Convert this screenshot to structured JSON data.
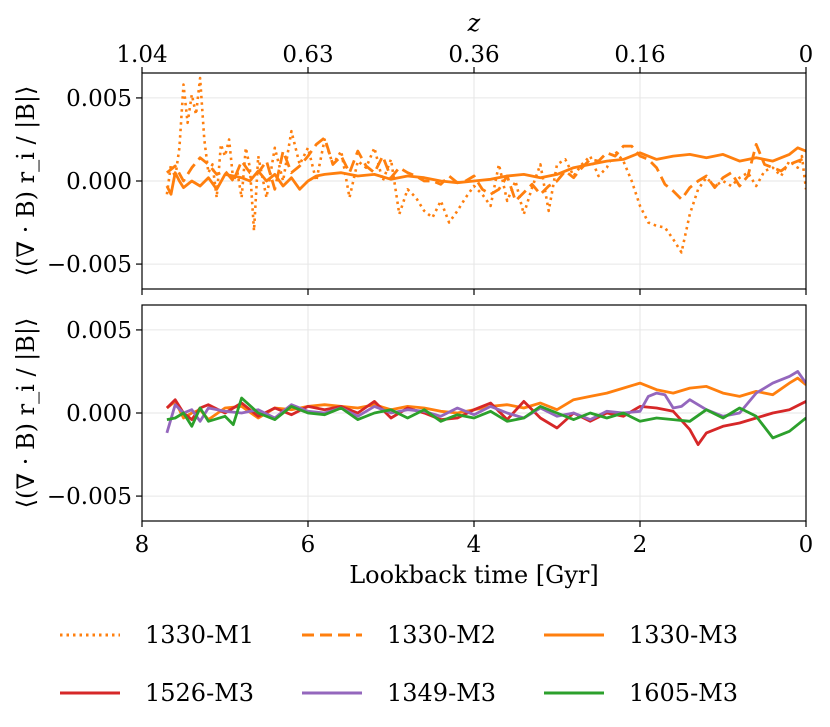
{
  "chart_data": [
    {
      "type": "line",
      "panel": "top",
      "ylabel": "⟨(∇ · B) r_i / |B|⟩",
      "xlim": [
        8,
        0
      ],
      "ylim": [
        -0.0065,
        0.0065
      ],
      "yticks": [
        -0.005,
        0.0,
        0.005
      ],
      "ytick_labels": [
        "−0.005",
        "0.000",
        "0.005"
      ],
      "xticks": [
        8,
        6,
        4,
        2,
        0
      ],
      "xtick_labels": [
        "",
        "",
        "",
        "",
        ""
      ],
      "grid": true,
      "top_axis": {
        "label": "z",
        "ticks": [
          8,
          6,
          4,
          2,
          0
        ],
        "tick_labels": [
          "1.04",
          "0.63",
          "0.36",
          "0.16",
          "0"
        ]
      },
      "series": [
        {
          "name": "1330-M1",
          "color": "#ff7f0e",
          "style": "dotted",
          "x": [
            7.7,
            7.65,
            7.6,
            7.55,
            7.5,
            7.45,
            7.4,
            7.35,
            7.3,
            7.25,
            7.2,
            7.15,
            7.1,
            7.05,
            7.0,
            6.95,
            6.9,
            6.85,
            6.8,
            6.75,
            6.7,
            6.65,
            6.6,
            6.5,
            6.4,
            6.3,
            6.2,
            6.1,
            6.0,
            5.9,
            5.8,
            5.7,
            5.6,
            5.5,
            5.4,
            5.3,
            5.2,
            5.1,
            5.0,
            4.9,
            4.8,
            4.7,
            4.6,
            4.5,
            4.4,
            4.3,
            4.2,
            4.1,
            4.0,
            3.9,
            3.8,
            3.7,
            3.6,
            3.5,
            3.4,
            3.3,
            3.2,
            3.1,
            3.0,
            2.9,
            2.8,
            2.7,
            2.6,
            2.5,
            2.4,
            2.3,
            2.2,
            2.1,
            2.0,
            1.9,
            1.8,
            1.7,
            1.6,
            1.5,
            1.4,
            1.3,
            1.2,
            1.1,
            1.0,
            0.9,
            0.8,
            0.7,
            0.6,
            0.5,
            0.4,
            0.3,
            0.2,
            0.1,
            0.05,
            0.0
          ],
          "y": [
            -0.0008,
            0.001,
            0.0002,
            0.002,
            0.0058,
            0.0035,
            0.0052,
            0.004,
            0.0062,
            0.0025,
            0.0005,
            0.001,
            -0.001,
            0.0022,
            0.0015,
            0.0025,
            0.0,
            0.0005,
            -0.001,
            0.002,
            0.0008,
            -0.003,
            0.0015,
            -0.001,
            0.002,
            0.0,
            0.003,
            0.001,
            0.002,
            0.0,
            0.0025,
            0.001,
            0.0018,
            -0.001,
            0.0012,
            0.0008,
            0.002,
            0.0,
            0.0013,
            -0.002,
            -0.0005,
            -0.001,
            -0.0018,
            -0.0022,
            -0.0012,
            -0.0025,
            -0.0018,
            -0.001,
            -0.0003,
            -0.0008,
            -0.0015,
            0.001,
            -0.0012,
            0.0,
            -0.002,
            -0.0004,
            0.001,
            -0.0018,
            0.001,
            0.0013,
            0.0003,
            0.001,
            0.0015,
            0.0003,
            0.0008,
            0.0018,
            0.0012,
            0.0,
            -0.0015,
            -0.0025,
            -0.0027,
            -0.0028,
            -0.0035,
            -0.0043,
            -0.002,
            -0.0005,
            0.0002,
            -0.0003,
            0.0,
            -0.0003,
            0.0002,
            0.0005,
            -0.0003,
            0.0006,
            0.0008,
            0.0003,
            0.0012,
            0.0008,
            0.0015,
            -0.0005
          ]
        },
        {
          "name": "1330-M2",
          "color": "#ff7f0e",
          "style": "dashed",
          "x": [
            7.7,
            7.6,
            7.5,
            7.4,
            7.3,
            7.2,
            7.1,
            7.0,
            6.9,
            6.8,
            6.7,
            6.6,
            6.5,
            6.4,
            6.3,
            6.2,
            6.1,
            6.0,
            5.9,
            5.8,
            5.7,
            5.6,
            5.5,
            5.4,
            5.3,
            5.2,
            5.1,
            5.0,
            4.9,
            4.8,
            4.7,
            4.6,
            4.5,
            4.4,
            4.3,
            4.2,
            4.1,
            4.0,
            3.9,
            3.8,
            3.7,
            3.6,
            3.5,
            3.4,
            3.3,
            3.2,
            3.1,
            3.0,
            2.9,
            2.8,
            2.7,
            2.6,
            2.5,
            2.4,
            2.3,
            2.2,
            2.1,
            2.0,
            1.9,
            1.8,
            1.7,
            1.6,
            1.5,
            1.4,
            1.3,
            1.2,
            1.1,
            1.0,
            0.9,
            0.8,
            0.7,
            0.6,
            0.5,
            0.4,
            0.3,
            0.2,
            0.1,
            0.0
          ],
          "y": [
            0.0005,
            0.0009,
            0.0,
            0.0008,
            0.0014,
            0.001,
            0.0004,
            0.0006,
            0.0,
            0.0012,
            0.0005,
            0.0005,
            0.0012,
            -0.0005,
            0.0018,
            0.0005,
            0.0009,
            0.0015,
            0.0022,
            0.0026,
            0.001,
            0.0015,
            0.0005,
            0.0018,
            0.0009,
            0.0005,
            0.0015,
            0.0002,
            0.0008,
            0.0005,
            0.0003,
            0.0,
            0.0,
            -0.0002,
            0.0003,
            -0.0001,
            0.0,
            0.0003,
            -0.0005,
            -0.0008,
            -0.0005,
            0.0003,
            -0.0012,
            -0.0007,
            -0.0002,
            -0.0008,
            -0.0003,
            0.0,
            0.0006,
            0.0002,
            0.0008,
            0.0013,
            0.0012,
            0.0017,
            0.0015,
            0.0021,
            0.0021,
            0.0015,
            0.0013,
            0.0008,
            -0.0002,
            -0.0006,
            -0.0011,
            -0.0004,
            0.0,
            0.0003,
            -0.0004,
            0.0002,
            0.0005,
            -0.0003,
            0.0003,
            0.0022,
            0.001,
            0.0008,
            0.0006,
            0.001,
            0.0012,
            0.0014
          ]
        },
        {
          "name": "1330-M3",
          "color": "#ff7f0e",
          "style": "solid",
          "x": [
            7.7,
            7.65,
            7.6,
            7.55,
            7.5,
            7.4,
            7.3,
            7.2,
            7.1,
            7.0,
            6.9,
            6.8,
            6.7,
            6.6,
            6.5,
            6.4,
            6.3,
            6.2,
            6.1,
            6.0,
            5.9,
            5.8,
            5.6,
            5.4,
            5.2,
            5.0,
            4.8,
            4.6,
            4.4,
            4.2,
            4.0,
            3.8,
            3.6,
            3.4,
            3.2,
            3.0,
            2.8,
            2.6,
            2.4,
            2.2,
            2.0,
            1.8,
            1.6,
            1.4,
            1.2,
            1.0,
            0.8,
            0.6,
            0.4,
            0.2,
            0.1,
            0.0
          ],
          "y": [
            -0.0003,
            -0.0008,
            0.0005,
            0.0,
            -0.0004,
            0.0,
            -0.0003,
            0.0002,
            -0.0005,
            0.0004,
            0.0003,
            0.0002,
            0.0,
            0.0006,
            0.0,
            0.0004,
            -0.0003,
            0.0002,
            -0.0005,
            0.0,
            0.0003,
            0.0004,
            0.0005,
            0.0003,
            0.0004,
            0.0001,
            0.0003,
            0.0002,
            0.0,
            -0.0001,
            0.0,
            0.0001,
            0.0003,
            0.0004,
            0.0002,
            0.0004,
            0.0008,
            0.001,
            0.0012,
            0.0013,
            0.0017,
            0.0013,
            0.0015,
            0.0016,
            0.0014,
            0.0016,
            0.0012,
            0.0014,
            0.0012,
            0.0016,
            0.002,
            0.0018
          ]
        }
      ]
    },
    {
      "type": "line",
      "panel": "bottom",
      "xlabel": "Lookback time [Gyr]",
      "ylabel": "⟨(∇ · B) r_i / |B|⟩",
      "xlim": [
        8,
        0
      ],
      "ylim": [
        -0.0065,
        0.0065
      ],
      "yticks": [
        -0.005,
        0.0,
        0.005
      ],
      "ytick_labels": [
        "−0.005",
        "0.000",
        "0.005"
      ],
      "xticks": [
        8,
        6,
        4,
        2,
        0
      ],
      "xtick_labels": [
        "8",
        "6",
        "4",
        "2",
        "0"
      ],
      "grid": true,
      "series": [
        {
          "name": "1330-M3",
          "color": "#ff7f0e",
          "style": "solid",
          "x": [
            7.7,
            7.6,
            7.5,
            7.4,
            7.3,
            7.2,
            7.0,
            6.8,
            6.6,
            6.4,
            6.2,
            6.0,
            5.8,
            5.6,
            5.4,
            5.2,
            5.0,
            4.8,
            4.6,
            4.4,
            4.2,
            4.0,
            3.8,
            3.6,
            3.4,
            3.2,
            3.0,
            2.8,
            2.6,
            2.4,
            2.2,
            2.0,
            1.8,
            1.6,
            1.4,
            1.2,
            1.0,
            0.8,
            0.6,
            0.4,
            0.2,
            0.1,
            0.0
          ],
          "y": [
            0.0003,
            0.0007,
            -0.0003,
            0.0,
            0.0002,
            -0.0004,
            0.0003,
            0.0004,
            -0.0003,
            0.0003,
            0.0002,
            0.0004,
            0.0005,
            0.0004,
            0.0003,
            0.0005,
            0.0002,
            0.0004,
            0.0003,
            0.0001,
            0.0,
            0.0002,
            0.0004,
            0.0005,
            0.0003,
            0.0006,
            0.0002,
            0.0008,
            0.001,
            0.0012,
            0.0015,
            0.0018,
            0.0014,
            0.0012,
            0.0015,
            0.0016,
            0.0012,
            0.001,
            0.0013,
            0.0011,
            0.0018,
            0.0021,
            0.0017
          ]
        },
        {
          "name": "1526-M3",
          "color": "#d62728",
          "style": "solid",
          "x": [
            7.7,
            7.6,
            7.5,
            7.4,
            7.3,
            7.2,
            7.0,
            6.8,
            6.6,
            6.4,
            6.2,
            6.0,
            5.8,
            5.6,
            5.4,
            5.2,
            5.0,
            4.8,
            4.6,
            4.4,
            4.2,
            4.0,
            3.8,
            3.6,
            3.4,
            3.2,
            3.0,
            2.8,
            2.6,
            2.4,
            2.2,
            2.0,
            1.8,
            1.6,
            1.4,
            1.3,
            1.2,
            1.0,
            0.8,
            0.6,
            0.4,
            0.2,
            0.0
          ],
          "y": [
            0.0003,
            0.0008,
            0.0,
            -0.0004,
            0.0003,
            0.0005,
            0.0,
            0.0006,
            -0.0002,
            0.0003,
            -0.0001,
            0.0004,
            0.0002,
            0.0004,
            0.0,
            0.0007,
            -0.0003,
            0.0003,
            0.0,
            -0.0004,
            -0.0003,
            0.0002,
            0.0006,
            -0.0004,
            0.0007,
            -0.0003,
            -0.0009,
            0.0,
            -0.0005,
            0.0,
            -0.0002,
            0.0004,
            0.0003,
            0.0001,
            -0.001,
            -0.0019,
            -0.0012,
            -0.0008,
            -0.0006,
            -0.0003,
            0.0,
            0.0002,
            0.0007
          ]
        },
        {
          "name": "1349-M3",
          "color": "#9467bd",
          "style": "solid",
          "x": [
            7.7,
            7.6,
            7.5,
            7.4,
            7.3,
            7.2,
            7.0,
            6.8,
            6.6,
            6.4,
            6.2,
            6.0,
            5.8,
            5.6,
            5.4,
            5.2,
            5.0,
            4.8,
            4.6,
            4.4,
            4.2,
            4.0,
            3.8,
            3.6,
            3.4,
            3.2,
            3.0,
            2.8,
            2.6,
            2.4,
            2.2,
            2.0,
            1.9,
            1.8,
            1.7,
            1.6,
            1.5,
            1.4,
            1.2,
            1.0,
            0.8,
            0.6,
            0.4,
            0.2,
            0.1,
            0.0
          ],
          "y": [
            -0.0012,
            0.0005,
            0.0,
            0.0002,
            -0.0005,
            0.0003,
            0.0001,
            0.0,
            0.0002,
            -0.0003,
            0.0005,
            0.0001,
            0.0,
            0.0003,
            -0.0002,
            0.0004,
            0.0,
            0.0002,
            0.0001,
            -0.0002,
            0.0003,
            -0.0001,
            0.0004,
            0.0,
            -0.0003,
            0.0003,
            -0.0002,
            0.0,
            -0.0004,
            0.0001,
            0.0,
            0.0001,
            0.001,
            0.0012,
            0.0011,
            0.0003,
            0.0004,
            0.0008,
            0.0002,
            -0.0002,
            0.0,
            0.0012,
            0.0018,
            0.0022,
            0.0025,
            0.0018
          ]
        },
        {
          "name": "1605-M3",
          "color": "#2ca02c",
          "style": "solid",
          "x": [
            7.7,
            7.6,
            7.5,
            7.4,
            7.3,
            7.2,
            7.0,
            6.9,
            6.8,
            6.6,
            6.4,
            6.2,
            6.0,
            5.8,
            5.6,
            5.4,
            5.2,
            5.0,
            4.8,
            4.6,
            4.4,
            4.2,
            4.0,
            3.8,
            3.6,
            3.4,
            3.2,
            3.0,
            2.8,
            2.6,
            2.4,
            2.2,
            2.0,
            1.8,
            1.6,
            1.4,
            1.2,
            1.0,
            0.8,
            0.6,
            0.4,
            0.2,
            0.0
          ],
          "y": [
            -0.0004,
            -0.0003,
            0.0,
            -0.0008,
            0.0003,
            -0.0005,
            -0.0002,
            -0.0007,
            0.0009,
            0.0,
            -0.0004,
            0.0004,
            0.0,
            -0.0001,
            0.0003,
            -0.0004,
            0.0,
            0.0002,
            -0.0003,
            0.0002,
            -0.0005,
            -0.0001,
            -0.0003,
            0.0001,
            -0.0005,
            -0.0003,
            0.0004,
            0.0,
            -0.0004,
            0.0,
            -0.0003,
            0.0,
            -0.0005,
            -0.0003,
            -0.0004,
            -0.0005,
            0.0002,
            -0.0003,
            0.0003,
            -0.0002,
            -0.0015,
            -0.0011,
            -0.0003
          ]
        }
      ]
    }
  ],
  "legend": {
    "placement": "bottom",
    "entries": [
      {
        "label": "1330-M1",
        "color": "#ff7f0e",
        "style": "dotted"
      },
      {
        "label": "1330-M2",
        "color": "#ff7f0e",
        "style": "dashed"
      },
      {
        "label": "1330-M3",
        "color": "#ff7f0e",
        "style": "solid"
      },
      {
        "label": "1526-M3",
        "color": "#d62728",
        "style": "solid"
      },
      {
        "label": "1349-M3",
        "color": "#9467bd",
        "style": "solid"
      },
      {
        "label": "1605-M3",
        "color": "#2ca02c",
        "style": "solid"
      }
    ]
  }
}
